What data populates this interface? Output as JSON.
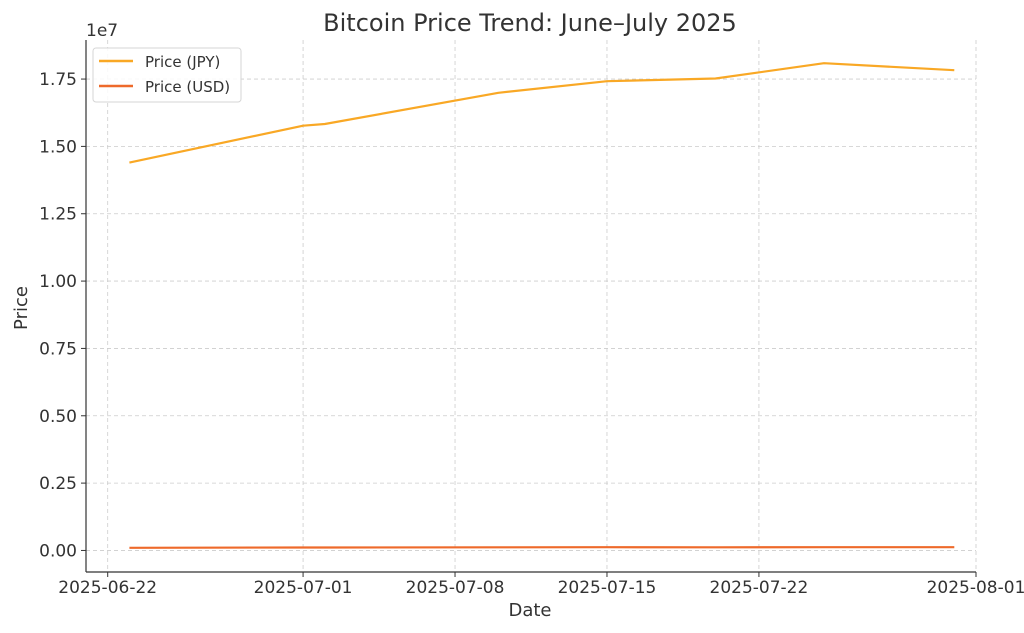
{
  "chart_data": {
    "type": "line",
    "title": "Bitcoin Price Trend: June–July 2025",
    "xlabel": "Date",
    "ylabel": "Price",
    "y_offset_label": "1e7",
    "x": [
      "2025-06-23",
      "2025-07-01",
      "2025-07-02",
      "2025-07-10",
      "2025-07-15",
      "2025-07-20",
      "2025-07-25",
      "2025-07-31"
    ],
    "series": [
      {
        "name": "Price (JPY)",
        "color": "#f9a825",
        "values": [
          14400000,
          15770000,
          15830000,
          16990000,
          17420000,
          17520000,
          18090000,
          17830000
        ]
      },
      {
        "name": "Price (USD)",
        "color": "#ee6a2b",
        "values": [
          100000,
          108000,
          109000,
          117000,
          119000,
          118500,
          120000,
          119000
        ]
      }
    ],
    "x_ticks": [
      "2025-06-22",
      "2025-07-01",
      "2025-07-08",
      "2025-07-15",
      "2025-07-22",
      "2025-08-01"
    ],
    "y_ticks": [
      0,
      0.25,
      0.5,
      0.75,
      1.0,
      1.25,
      1.5,
      1.75
    ],
    "y_tick_labels": [
      "0.00",
      "0.25",
      "0.50",
      "0.75",
      "1.00",
      "1.25",
      "1.50",
      "1.75"
    ],
    "y_tick_multiplier": 10000000,
    "xlim": [
      "2025-06-21",
      "2025-08-01"
    ],
    "ylim": [
      -800000,
      18950000
    ],
    "grid": true,
    "legend_position": "top-left"
  }
}
